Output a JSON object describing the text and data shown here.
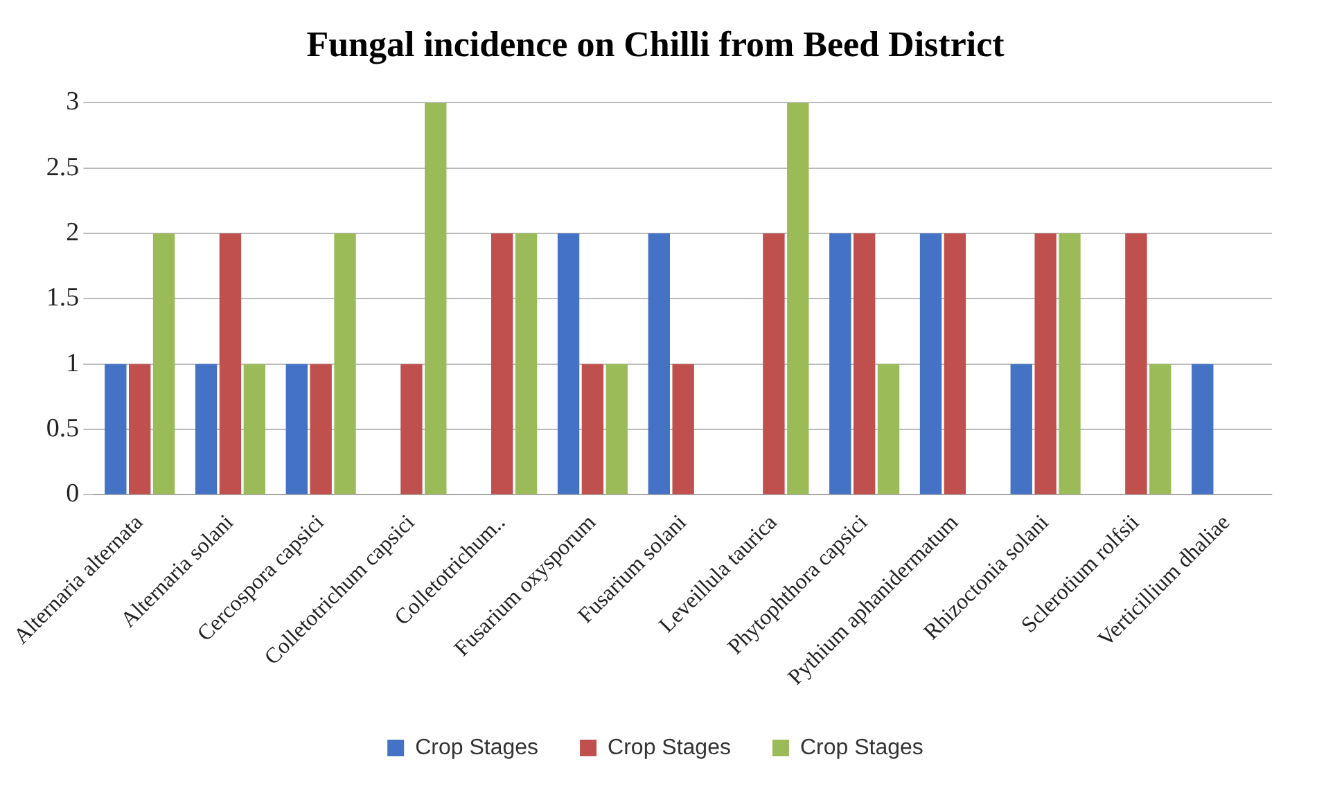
{
  "chart_data": {
    "type": "bar",
    "title": "Fungal incidence on Chilli from Beed District",
    "categories": [
      "Alternaria alternata",
      "Alternaria solani",
      "Cercospora capsici",
      "Colletotrichum capsici",
      "Colletotrichum..",
      "Fusarium oxysporum",
      "Fusarium solani",
      "Leveillula taurica",
      "Phytophthora capsici",
      "Pythium aphanidermatum",
      "Rhizoctonia solani",
      "Sclerotium rolfsii",
      "Verticillium dhaliae"
    ],
    "series": [
      {
        "name": "Crop Stages",
        "color": "#4472c4",
        "values": [
          1,
          1,
          1,
          0,
          0,
          2,
          2,
          0,
          2,
          2,
          1,
          0,
          1
        ]
      },
      {
        "name": "Crop Stages",
        "color": "#c0504d",
        "values": [
          1,
          2,
          1,
          1,
          2,
          1,
          1,
          2,
          2,
          2,
          2,
          2,
          0
        ]
      },
      {
        "name": "Crop Stages",
        "color": "#9bbb59",
        "values": [
          2,
          1,
          2,
          3,
          2,
          1,
          0,
          3,
          1,
          0,
          2,
          1,
          0
        ]
      }
    ],
    "ylim": [
      0,
      3
    ],
    "yticks": [
      0,
      0.5,
      1,
      1.5,
      2,
      2.5,
      3
    ],
    "grid": "y",
    "legend": "bottom"
  }
}
